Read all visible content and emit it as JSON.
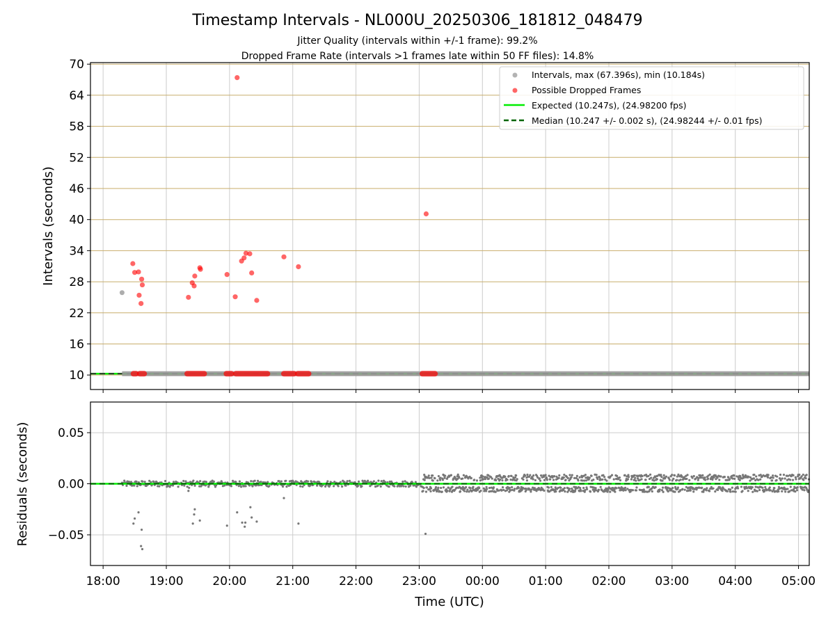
{
  "chart_data": [
    {
      "type": "scatter",
      "title": "Timestamp Intervals - NL000U_20250306_181812_048479",
      "subtitle_1": "Jitter Quality (intervals within +/-1 frame): 99.2%",
      "subtitle_2": "Dropped Frame Rate (intervals >1 frames late within 50 FF files): 14.8%",
      "xlabel": "",
      "ylabel": "Intervals (seconds)",
      "xlim_hours": [
        17.8,
        29.17
      ],
      "ylim": [
        7.2,
        70.3
      ],
      "yticks": [
        10,
        16,
        22,
        28,
        34,
        40,
        46,
        52,
        58,
        64,
        70
      ],
      "y_grid": "horizontal lines in tan",
      "x_grid": "vertical lines in light grey",
      "legend_position": "upper right",
      "legend": [
        "Intervals, max (67.396s), min (10.184s)",
        "Possible Dropped Frames",
        "Expected (10.247s), (24.98200 fps)",
        "Median (10.247 +/- 0.002 s), (24.98244 +/- 0.01 fps)"
      ],
      "colors": {
        "intervals": "#999999",
        "dropped": "#ff0000",
        "expected": "#00ee00",
        "median": "#006400",
        "ygrid": "#c8ad6a",
        "xgrid": "#cccccc"
      },
      "series": [
        {
          "name": "Intervals, max (67.396s), min (10.184s)",
          "baseline_value": 10.247,
          "baseline_span_hours": [
            18.3,
            29.17
          ],
          "points": [
            [
              18.3,
              25.9
            ]
          ]
        },
        {
          "name": "Possible Dropped Frames",
          "points": [
            [
              18.47,
              31.5
            ],
            [
              18.5,
              29.8
            ],
            [
              18.56,
              29.9
            ],
            [
              18.57,
              25.4
            ],
            [
              18.6,
              23.8
            ],
            [
              18.61,
              28.5
            ],
            [
              18.62,
              27.4
            ],
            [
              19.35,
              25.0
            ],
            [
              19.41,
              27.8
            ],
            [
              19.44,
              27.2
            ],
            [
              19.45,
              29.1
            ],
            [
              19.53,
              30.7
            ],
            [
              19.54,
              30.4
            ],
            [
              19.96,
              29.4
            ],
            [
              20.09,
              25.1
            ],
            [
              20.12,
              67.4
            ],
            [
              20.19,
              32.0
            ],
            [
              20.23,
              32.6
            ],
            [
              20.26,
              33.5
            ],
            [
              20.32,
              33.4
            ],
            [
              20.35,
              29.7
            ],
            [
              20.43,
              24.4
            ],
            [
              20.86,
              32.8
            ],
            [
              21.09,
              30.9
            ],
            [
              23.11,
              41.1
            ]
          ],
          "baseline_clusters_hours": [
            [
              18.48,
              18.52
            ],
            [
              18.58,
              18.65
            ],
            [
              19.33,
              19.6
            ],
            [
              19.95,
              20.03
            ],
            [
              20.1,
              20.6
            ],
            [
              20.86,
              21.02
            ],
            [
              21.08,
              21.25
            ],
            [
              23.05,
              23.25
            ]
          ],
          "baseline_value": 10.25
        }
      ],
      "expected_value": 10.247,
      "median_value": 10.247
    },
    {
      "type": "scatter",
      "xlabel": "Time (UTC)",
      "ylabel": "Residuals (seconds)",
      "xlim_hours": [
        17.8,
        29.17
      ],
      "ylim": [
        -0.08,
        0.08
      ],
      "yticks": [
        0.05,
        0.0,
        -0.05
      ],
      "ytick_labels": [
        "0.05",
        "0.00",
        "−0.05"
      ],
      "xticks_hours": [
        18,
        19,
        20,
        21,
        22,
        23,
        24,
        25,
        26,
        27,
        28,
        29
      ],
      "xtick_labels": [
        "18:00",
        "19:00",
        "20:00",
        "21:00",
        "22:00",
        "23:00",
        "00:00",
        "01:00",
        "02:00",
        "03:00",
        "04:00",
        "05:00"
      ],
      "grid": "both axes, light grey",
      "colors": {
        "points": "#777777",
        "expected": "#00ee00",
        "median": "#006400"
      },
      "dense_band": {
        "span_hours": [
          18.3,
          23.05
        ],
        "range": [
          -0.003,
          0.003
        ],
        "later_span_hours": [
          23.05,
          29.17
        ],
        "later_range": [
          -0.008,
          0.009
        ]
      },
      "outliers": [
        [
          18.48,
          -0.039
        ],
        [
          18.5,
          -0.034
        ],
        [
          18.56,
          -0.028
        ],
        [
          18.6,
          -0.061
        ],
        [
          18.61,
          -0.045
        ],
        [
          18.62,
          -0.064
        ],
        [
          19.35,
          -0.007
        ],
        [
          19.36,
          -0.004
        ],
        [
          19.42,
          -0.039
        ],
        [
          19.44,
          -0.03
        ],
        [
          19.45,
          -0.025
        ],
        [
          19.53,
          -0.036
        ],
        [
          19.96,
          -0.041
        ],
        [
          20.12,
          -0.028
        ],
        [
          20.2,
          -0.038
        ],
        [
          20.24,
          -0.042
        ],
        [
          20.25,
          -0.038
        ],
        [
          20.33,
          -0.023
        ],
        [
          20.35,
          -0.033
        ],
        [
          20.43,
          -0.037
        ],
        [
          20.86,
          -0.014
        ],
        [
          21.09,
          -0.039
        ],
        [
          23.1,
          -0.049
        ]
      ]
    }
  ]
}
